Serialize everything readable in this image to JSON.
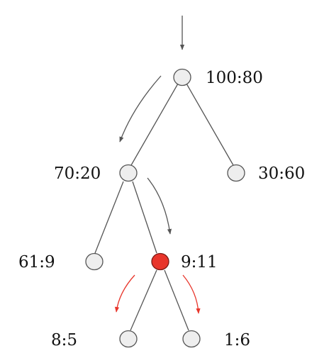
{
  "tree": {
    "nodes": {
      "root": {
        "label": "100:80",
        "highlighted": false
      },
      "left": {
        "label": "70:20",
        "highlighted": false
      },
      "right": {
        "label": "30:60",
        "highlighted": false
      },
      "left_left": {
        "label": "61:9",
        "highlighted": false
      },
      "left_right": {
        "label": "9:11",
        "highlighted": true
      },
      "lr_left": {
        "label": "8:5",
        "highlighted": false
      },
      "lr_right": {
        "label": "1:6",
        "highlighted": false
      }
    },
    "edges": [
      [
        "root",
        "left"
      ],
      [
        "root",
        "right"
      ],
      [
        "left",
        "left_left"
      ],
      [
        "left",
        "left_right"
      ],
      [
        "left_right",
        "lr_left"
      ],
      [
        "left_right",
        "lr_right"
      ]
    ]
  },
  "colors": {
    "node_fill": "#eeeeee",
    "node_stroke": "#555555",
    "highlight_fill": "#e8352b",
    "highlight_stroke": "#7a1a14",
    "edge": "#555555",
    "traversal_arrow": "#555555",
    "split_arrow": "#e8352b"
  }
}
